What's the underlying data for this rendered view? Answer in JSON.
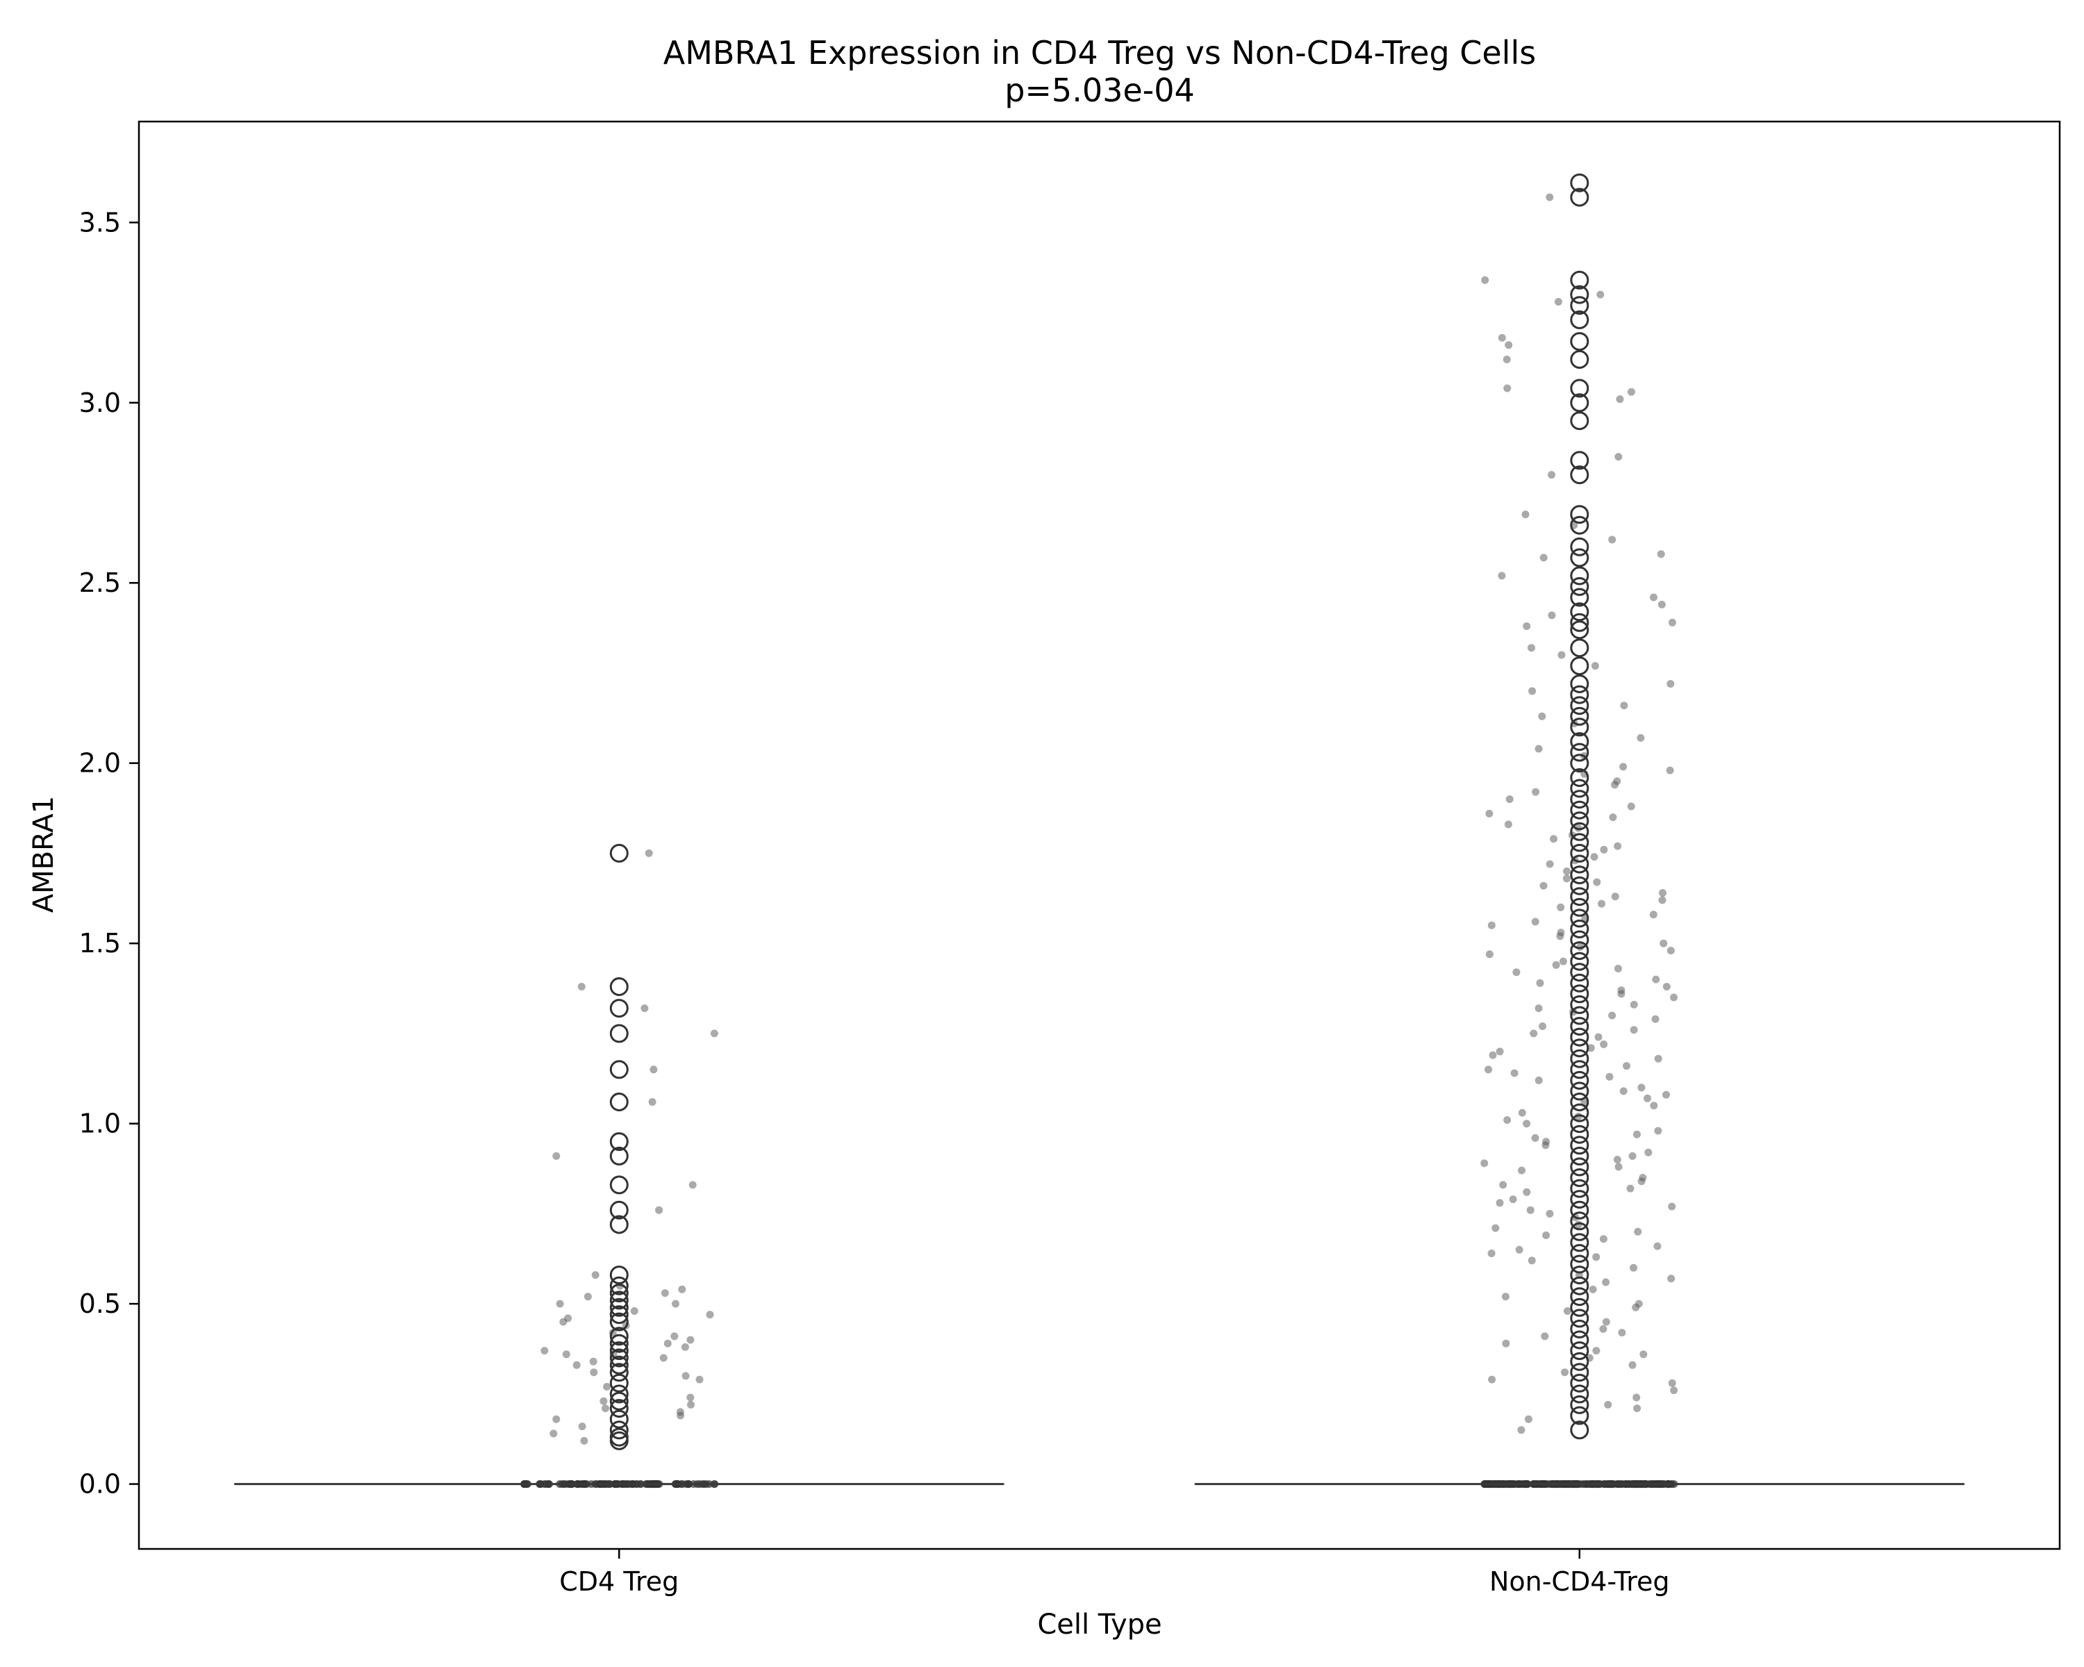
{
  "chart_data": {
    "type": "box",
    "title": "AMBRA1 Expression in CD4 Treg vs Non-CD4-Treg Cells",
    "subtitle": "p=5.03e-04",
    "xlabel": "Cell Type",
    "ylabel": "AMBRA1",
    "ylim": [
      -0.18,
      3.78
    ],
    "yticks": [
      {
        "value": 0.0,
        "label": "0.0"
      },
      {
        "value": 0.5,
        "label": "0.5"
      },
      {
        "value": 1.0,
        "label": "1.0"
      },
      {
        "value": 1.5,
        "label": "1.5"
      },
      {
        "value": 2.0,
        "label": "2.0"
      },
      {
        "value": 2.5,
        "label": "2.5"
      },
      {
        "value": 3.0,
        "label": "3.0"
      },
      {
        "value": 3.5,
        "label": "3.5"
      }
    ],
    "categories": [
      "CD4 Treg",
      "Non-CD4-Treg"
    ],
    "grid": false,
    "groups": [
      {
        "category": "CD4 Treg",
        "median": 0.0,
        "q1": 0.0,
        "q3": 0.0,
        "outliers": [
          1.75,
          1.38,
          1.32,
          1.25,
          1.15,
          1.06,
          0.95,
          0.91,
          0.83,
          0.76,
          0.72,
          0.58,
          0.55,
          0.53,
          0.51,
          0.49,
          0.47,
          0.45,
          0.41,
          0.39,
          0.37,
          0.35,
          0.33,
          0.31,
          0.28,
          0.25,
          0.23,
          0.21,
          0.18,
          0.15,
          0.13,
          0.12
        ],
        "jitter_points": [
          1.75,
          1.38,
          1.32,
          1.25,
          1.15,
          1.06,
          0.91,
          0.83,
          0.76,
          0.54,
          0.53,
          0.52,
          0.5,
          0.5,
          0.48,
          0.46,
          0.45,
          0.41,
          0.4,
          0.38,
          0.37,
          0.36,
          0.35,
          0.34,
          0.33,
          0.31,
          0.29,
          0.24,
          0.23,
          0.21,
          0.19,
          0.18,
          0.14,
          0.12,
          0.58,
          0.55,
          0.47,
          0.42,
          0.39,
          0.36,
          0.27,
          0.22,
          0.2,
          0.16,
          0.44,
          0.3
        ],
        "zero_count": 110
      },
      {
        "category": "Non-CD4-Treg",
        "median": 0.0,
        "q1": 0.0,
        "q3": 0.0,
        "outliers": [
          3.61,
          3.57,
          3.34,
          3.3,
          3.27,
          3.23,
          3.17,
          3.12,
          3.04,
          3.0,
          2.95,
          2.84,
          2.8,
          2.69,
          2.66,
          2.6,
          2.57,
          2.52,
          2.49,
          2.46,
          2.42,
          2.39,
          2.37,
          2.32,
          2.27,
          2.22,
          2.19,
          2.16,
          2.13,
          2.1,
          2.06,
          2.03,
          2.0,
          1.96,
          1.93,
          1.9,
          1.87,
          1.84,
          1.81,
          1.78,
          1.75,
          1.72,
          1.69,
          1.66,
          1.63,
          1.6,
          1.57,
          1.54,
          1.51,
          1.48,
          1.45,
          1.42,
          1.39,
          1.36,
          1.33,
          1.3,
          1.27,
          1.24,
          1.21,
          1.18,
          1.15,
          1.12,
          1.09,
          1.06,
          1.03,
          1.0,
          0.97,
          0.94,
          0.91,
          0.88,
          0.85,
          0.82,
          0.79,
          0.76,
          0.73,
          0.7,
          0.67,
          0.64,
          0.61,
          0.58,
          0.55,
          0.52,
          0.49,
          0.46,
          0.43,
          0.4,
          0.37,
          0.34,
          0.31,
          0.28,
          0.25,
          0.22,
          0.19,
          0.15
        ],
        "jitter_points": [
          3.57,
          3.34,
          3.3,
          3.28,
          3.18,
          3.16,
          3.12,
          3.04,
          3.03,
          3.01,
          2.85,
          2.8,
          2.69,
          2.66,
          2.58,
          2.57,
          2.52,
          2.46,
          2.41,
          2.39,
          2.38,
          2.32,
          2.27,
          2.22,
          2.2,
          2.16,
          2.13,
          2.07,
          2.04,
          2.02,
          1.99,
          1.97,
          1.95,
          1.94,
          1.92,
          1.9,
          1.88,
          1.86,
          1.83,
          1.82,
          1.8,
          1.79,
          1.77,
          1.76,
          1.74,
          1.72,
          1.7,
          1.68,
          1.67,
          1.66,
          1.64,
          1.62,
          1.61,
          1.6,
          1.58,
          1.56,
          1.55,
          1.53,
          1.52,
          1.5,
          1.48,
          1.47,
          1.45,
          1.44,
          1.42,
          1.4,
          1.39,
          1.38,
          1.36,
          1.35,
          1.33,
          1.31,
          1.3,
          1.29,
          1.27,
          1.26,
          1.24,
          1.22,
          1.21,
          1.2,
          1.18,
          1.16,
          1.15,
          1.13,
          1.12,
          1.1,
          1.09,
          1.08,
          1.06,
          1.05,
          1.03,
          1.01,
          1.0,
          0.98,
          0.97,
          0.96,
          0.94,
          0.92,
          0.91,
          0.9,
          0.88,
          0.87,
          0.85,
          0.84,
          0.82,
          0.81,
          0.79,
          0.78,
          0.76,
          0.75,
          0.74,
          0.72,
          0.71,
          0.69,
          0.68,
          0.66,
          0.65,
          0.64,
          0.62,
          0.6,
          0.58,
          0.56,
          0.54,
          0.52,
          0.5,
          0.48,
          0.45,
          0.43,
          0.41,
          0.39,
          0.37,
          0.35,
          0.33,
          0.31,
          0.29,
          0.26,
          0.24,
          0.21,
          0.18,
          0.15,
          2.62,
          2.44,
          2.3,
          2.11,
          1.98,
          1.85,
          1.73,
          1.63,
          1.57,
          1.49,
          1.43,
          1.37,
          1.32,
          1.25,
          1.19,
          1.14,
          1.07,
          1.02,
          0.95,
          0.89,
          0.83,
          0.77,
          0.7,
          0.63,
          0.57,
          0.49,
          0.42,
          0.36,
          0.28,
          0.22
        ],
        "zero_count": 220
      }
    ]
  }
}
